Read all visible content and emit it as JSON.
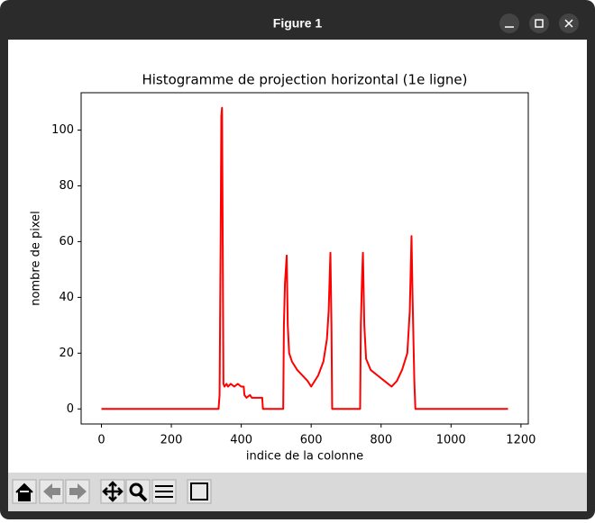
{
  "window": {
    "title": "Figure 1"
  },
  "chart_data": {
    "type": "line",
    "title": "Histogramme de projection horizontal (1e ligne)",
    "x_label": "indice de la colonne",
    "y_label": "nombre de pixel",
    "color": "#ff0000",
    "x": [
      0,
      335,
      338,
      341,
      343,
      345,
      347,
      349,
      352,
      358,
      362,
      370,
      380,
      390,
      400,
      407,
      409,
      415,
      425,
      430,
      440,
      450,
      460,
      462,
      520,
      522,
      525,
      530,
      533,
      537,
      545,
      560,
      575,
      590,
      600,
      605,
      620,
      635,
      645,
      650,
      655,
      658,
      660,
      740,
      742,
      745,
      748,
      752,
      757,
      770,
      790,
      810,
      830,
      845,
      860,
      875,
      882,
      887,
      890,
      895,
      898,
      1163
    ],
    "values": [
      0,
      0,
      5,
      60,
      105,
      108,
      60,
      9,
      8,
      9,
      8,
      9,
      8,
      9,
      8,
      8,
      5,
      4,
      5,
      4,
      4,
      4,
      4,
      0,
      0,
      30,
      45,
      55,
      30,
      20,
      17,
      14,
      12,
      10,
      8,
      9,
      12,
      17,
      25,
      35,
      56,
      30,
      0,
      0,
      30,
      45,
      56,
      30,
      18,
      14,
      12,
      10,
      8,
      10,
      14,
      20,
      35,
      62,
      40,
      10,
      0,
      0
    ],
    "xlim": [
      -58,
      1221
    ],
    "ylim": [
      -5.4,
      113.4
    ],
    "xticks": [
      0,
      200,
      400,
      600,
      800,
      1000,
      1200
    ],
    "yticks": [
      0,
      20,
      40,
      60,
      80,
      100
    ]
  }
}
